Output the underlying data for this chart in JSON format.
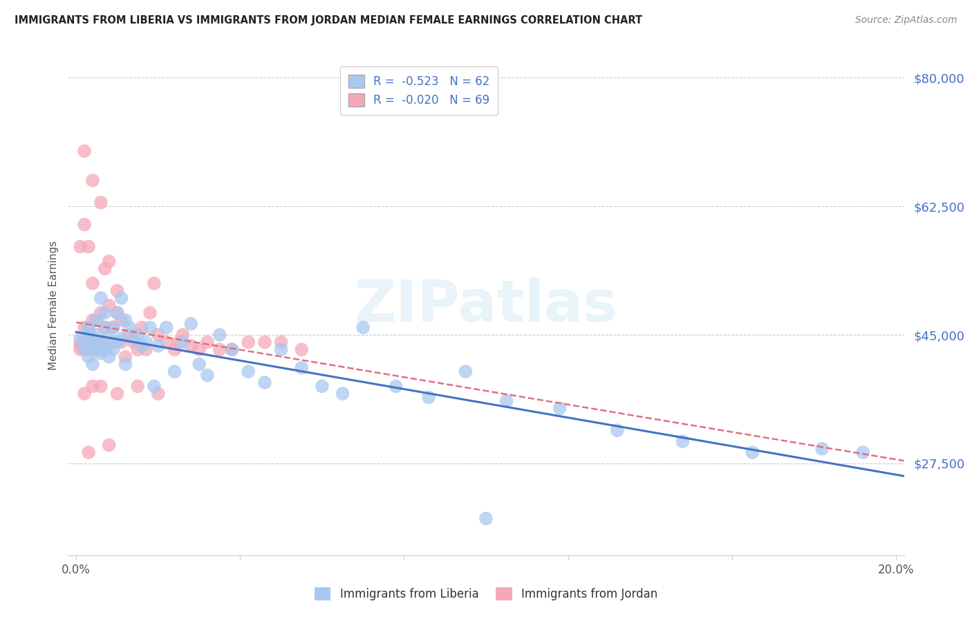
{
  "title": "IMMIGRANTS FROM LIBERIA VS IMMIGRANTS FROM JORDAN MEDIAN FEMALE EARNINGS CORRELATION CHART",
  "source": "Source: ZipAtlas.com",
  "ylabel": "Median Female Earnings",
  "ytick_labels": [
    "$80,000",
    "$62,500",
    "$45,000",
    "$27,500"
  ],
  "ytick_values": [
    80000,
    62500,
    45000,
    27500
  ],
  "ymin": 15000,
  "ymax": 83000,
  "xmin": -0.002,
  "xmax": 0.202,
  "liberia_color": "#a8c8f0",
  "jordan_color": "#f5a8b8",
  "liberia_line_color": "#4472c4",
  "jordan_line_color": "#e07080",
  "background_color": "#ffffff",
  "watermark": "ZIPatlas",
  "liberia_x": [
    0.001,
    0.002,
    0.002,
    0.003,
    0.003,
    0.003,
    0.004,
    0.004,
    0.004,
    0.005,
    0.005,
    0.005,
    0.006,
    0.006,
    0.006,
    0.007,
    0.007,
    0.007,
    0.008,
    0.008,
    0.009,
    0.009,
    0.01,
    0.01,
    0.011,
    0.011,
    0.012,
    0.012,
    0.013,
    0.014,
    0.015,
    0.016,
    0.017,
    0.018,
    0.019,
    0.02,
    0.022,
    0.024,
    0.026,
    0.028,
    0.03,
    0.032,
    0.035,
    0.038,
    0.042,
    0.046,
    0.05,
    0.055,
    0.06,
    0.065,
    0.07,
    0.078,
    0.086,
    0.095,
    0.105,
    0.118,
    0.132,
    0.148,
    0.165,
    0.182,
    0.192,
    0.1
  ],
  "liberia_y": [
    44500,
    43000,
    44000,
    45500,
    42000,
    46000,
    43500,
    44500,
    41000,
    45000,
    43000,
    47000,
    44000,
    42500,
    50000,
    46000,
    43000,
    48000,
    44500,
    42000,
    46000,
    43000,
    48000,
    44000,
    50000,
    44500,
    47000,
    41000,
    46000,
    44500,
    45000,
    43500,
    44000,
    46000,
    38000,
    43500,
    46000,
    40000,
    44000,
    46500,
    41000,
    39500,
    45000,
    43000,
    40000,
    38500,
    43000,
    40500,
    38000,
    37000,
    46000,
    38000,
    36500,
    40000,
    36000,
    35000,
    32000,
    30500,
    29000,
    29500,
    29000,
    20000
  ],
  "jordan_x": [
    0.001,
    0.001,
    0.001,
    0.002,
    0.002,
    0.002,
    0.003,
    0.003,
    0.003,
    0.003,
    0.004,
    0.004,
    0.004,
    0.004,
    0.005,
    0.005,
    0.005,
    0.005,
    0.006,
    0.006,
    0.006,
    0.007,
    0.007,
    0.007,
    0.008,
    0.008,
    0.009,
    0.009,
    0.01,
    0.01,
    0.011,
    0.011,
    0.012,
    0.013,
    0.014,
    0.015,
    0.016,
    0.017,
    0.018,
    0.019,
    0.02,
    0.022,
    0.024,
    0.026,
    0.028,
    0.03,
    0.032,
    0.035,
    0.038,
    0.042,
    0.046,
    0.05,
    0.055,
    0.025,
    0.02,
    0.015,
    0.01,
    0.008,
    0.006,
    0.004,
    0.003,
    0.002,
    0.001,
    0.002,
    0.003,
    0.003,
    0.004,
    0.005,
    0.006
  ],
  "jordan_y": [
    44000,
    43500,
    57000,
    70000,
    46000,
    43000,
    44000,
    43500,
    46000,
    57000,
    66000,
    52000,
    47000,
    43000,
    44000,
    43000,
    47000,
    43500,
    63000,
    44000,
    48000,
    43000,
    46000,
    54000,
    55000,
    49000,
    44000,
    46000,
    48000,
    51000,
    44000,
    47000,
    42000,
    45000,
    44000,
    43000,
    46000,
    43000,
    48000,
    52000,
    45000,
    44000,
    43000,
    45000,
    43500,
    43000,
    44000,
    43000,
    43000,
    44000,
    44000,
    44000,
    43000,
    44000,
    37000,
    38000,
    37000,
    30000,
    38000,
    38000,
    29000,
    37000,
    43000,
    60000,
    44000,
    43000,
    44000,
    43000,
    44000
  ]
}
